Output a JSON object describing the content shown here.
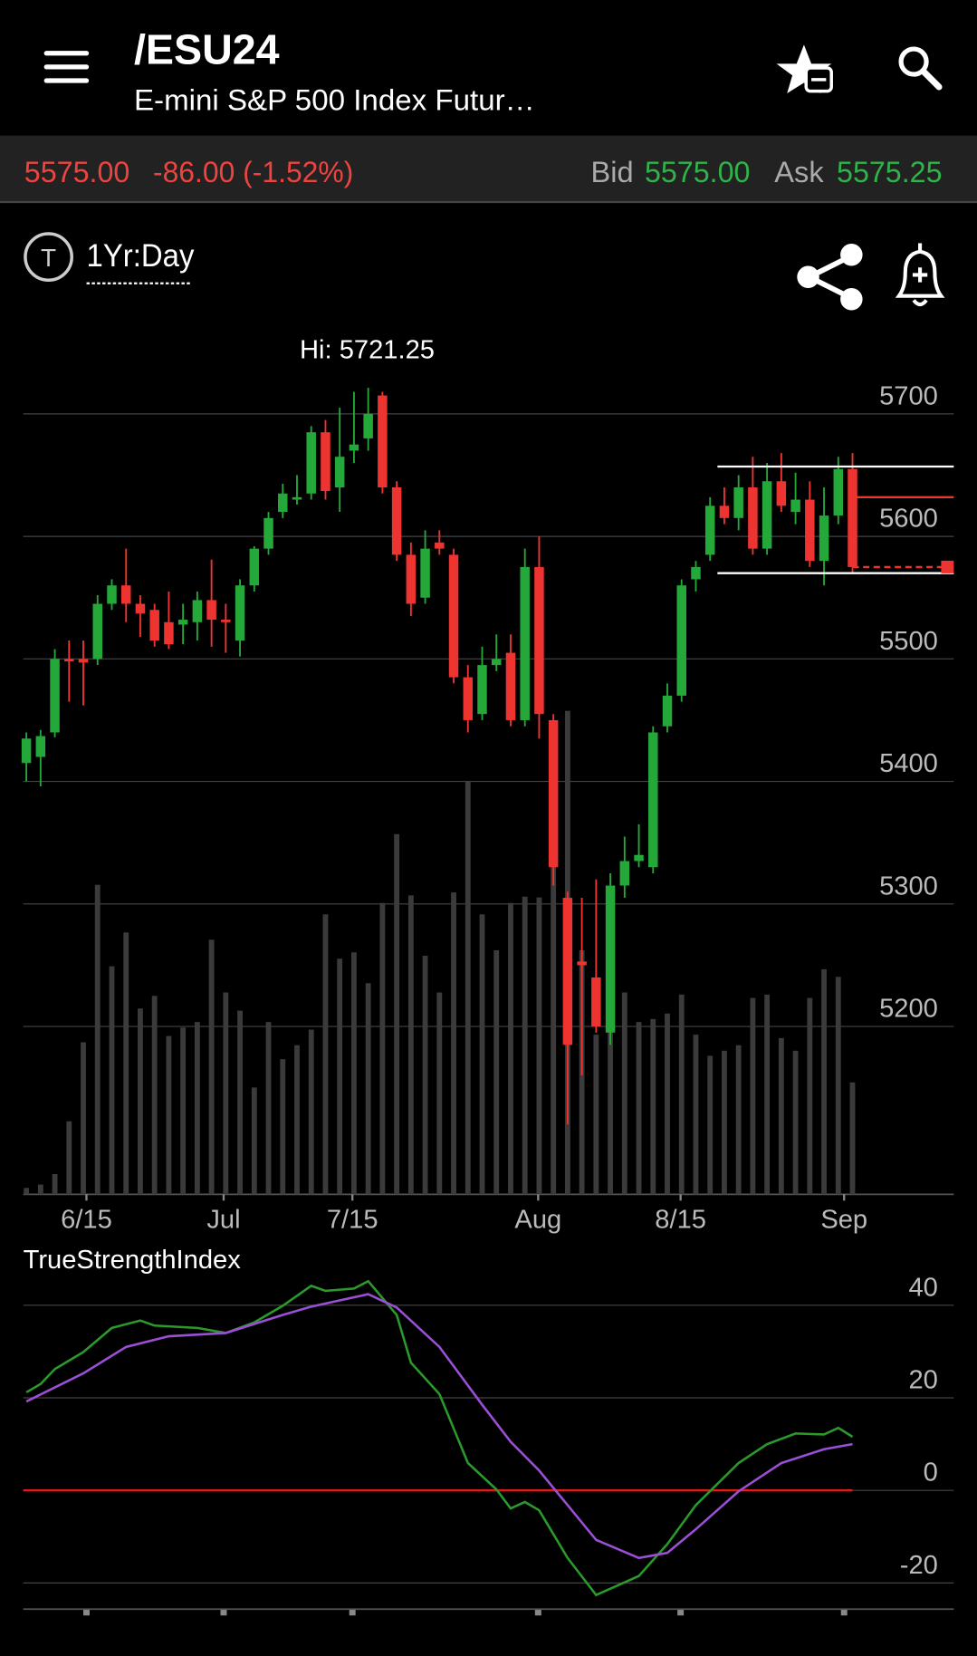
{
  "header": {
    "symbol": "/ESU24",
    "name": "E-mini S&P 500 Index Futur…"
  },
  "quote": {
    "last": "5575.00",
    "change": "-86.00 (-1.52%)",
    "bid_label": "Bid",
    "bid": "5575.00",
    "ask_label": "Ask",
    "ask": "5575.25"
  },
  "toolbar": {
    "period": "1Yr:Day"
  },
  "chart_data": [
    {
      "type": "candlestick",
      "annotation": "Hi: 5721.25",
      "open": [
        5415,
        5420,
        5440,
        5500,
        5500,
        5500,
        5545,
        5560,
        5545,
        5540,
        5530,
        5528,
        5530,
        5548,
        5532,
        5515,
        5560,
        5590,
        5620,
        5630,
        5635,
        5685,
        5640,
        5670,
        5680,
        5715,
        5640,
        5585,
        5550,
        5595,
        5585,
        5485,
        5455,
        5495,
        5505,
        5450,
        5575,
        5450,
        5305,
        5253,
        5240,
        5195,
        5315,
        5335,
        5330,
        5445,
        5470,
        5565,
        5585,
        5625,
        5615,
        5640,
        5590,
        5645,
        5620,
        5630,
        5580,
        5617,
        5655
      ],
      "high": [
        5440,
        5442,
        5508,
        5515,
        5515,
        5552,
        5565,
        5590,
        5552,
        5545,
        5555,
        5545,
        5555,
        5581,
        5545,
        5565,
        5592,
        5620,
        5643,
        5650,
        5690,
        5695,
        5705,
        5718,
        5721.25,
        5718,
        5645,
        5595,
        5605,
        5605,
        5590,
        5495,
        5510,
        5520,
        5520,
        5590,
        5600,
        5455,
        5310,
        5305,
        5320,
        5325,
        5355,
        5365,
        5445,
        5480,
        5565,
        5580,
        5632,
        5640,
        5650,
        5665,
        5660,
        5668,
        5652,
        5645,
        5640,
        5665,
        5668
      ],
      "low": [
        5400,
        5396,
        5436,
        5465,
        5462,
        5495,
        5540,
        5530,
        5518,
        5510,
        5508,
        5512,
        5515,
        5510,
        5505,
        5502,
        5555,
        5585,
        5615,
        5626,
        5630,
        5630,
        5620,
        5660,
        5670,
        5635,
        5580,
        5535,
        5545,
        5585,
        5480,
        5440,
        5450,
        5490,
        5445,
        5445,
        5435,
        5315,
        5120,
        5160,
        5195,
        5185,
        5305,
        5330,
        5325,
        5440,
        5465,
        5555,
        5580,
        5610,
        5605,
        5585,
        5585,
        5620,
        5610,
        5575,
        5560,
        5610,
        5570
      ],
      "close": [
        5435,
        5437,
        5500,
        5498,
        5497,
        5545,
        5560,
        5545,
        5537,
        5515,
        5512,
        5532,
        5548,
        5532,
        5530,
        5560,
        5590,
        5615,
        5635,
        5632,
        5685,
        5637,
        5665,
        5675,
        5700,
        5640,
        5585,
        5545,
        5590,
        5590,
        5485,
        5450,
        5495,
        5500,
        5450,
        5575,
        5455,
        5330,
        5185,
        5250,
        5200,
        5315,
        5335,
        5340,
        5440,
        5470,
        5560,
        5575,
        5625,
        5615,
        5640,
        5590,
        5645,
        5625,
        5630,
        5580,
        5617,
        5655,
        5575
      ],
      "volume": [
        1.5,
        2.3,
        4.8,
        17.3,
        36,
        73.3,
        54,
        62,
        44,
        47,
        37.5,
        39.5,
        40.8,
        60.3,
        47.8,
        43.5,
        25.3,
        40.8,
        32,
        35.3,
        39,
        66.3,
        55.8,
        57.3,
        50,
        69,
        85.3,
        70.8,
        56.5,
        47.8,
        71.5,
        97.8,
        66.3,
        57.8,
        69,
        70.5,
        70.3,
        92.8,
        114.5,
        57.8,
        37.8,
        47.8,
        47.8,
        40.8,
        41.5,
        42.8,
        47.3,
        37.8,
        32.8,
        34,
        35.3,
        46.5,
        47.3,
        37,
        34,
        46.5,
        53.3,
        51.5,
        26.5
      ],
      "volume_ylim": [
        0,
        100
      ],
      "ylim": [
        5063,
        5779
      ],
      "yticks": [
        5200,
        5300,
        5400,
        5500,
        5600,
        5700
      ],
      "xlim": [
        -0.22,
        65.11
      ],
      "xticks": [
        {
          "value": 4.22,
          "label": "6/15"
        },
        {
          "value": 13.85,
          "label": "Jul"
        },
        {
          "value": 22.89,
          "label": "7/15"
        },
        {
          "value": 35.93,
          "label": "Aug"
        },
        {
          "value": 45.93,
          "label": "8/15"
        },
        {
          "value": 57.41,
          "label": "Sep"
        }
      ],
      "grid": true,
      "up_color": "#24a83a",
      "down_color": "#ee3430",
      "volume_color": "#3b3b3b",
      "price_lines": [
        {
          "value": 5657,
          "color": "#ffffff",
          "style": "solid",
          "kind": "range"
        },
        {
          "value": 5570,
          "color": "#ffffff",
          "style": "solid",
          "kind": "range"
        },
        {
          "value": 5632,
          "color": "#ee3430",
          "style": "solid",
          "kind": "price"
        },
        {
          "value": 5575,
          "color": "#ee3430",
          "style": "dashed",
          "kind": "price"
        }
      ]
    },
    {
      "type": "line",
      "title": "TrueStrengthIndex",
      "xlim": [
        -0.22,
        65.11
      ],
      "ylim": [
        -25.2,
        47.1
      ],
      "yticks": [
        -20,
        0,
        20,
        40
      ],
      "grid": true,
      "zero_line_color": "#e01b1b",
      "series": [
        {
          "color": "#2a9a2a",
          "x": [
            0,
            1,
            2,
            4,
            6,
            8,
            9,
            12,
            14,
            16,
            18,
            20,
            21,
            23,
            24,
            26,
            27,
            29,
            31,
            33,
            34,
            35,
            36,
            38,
            40,
            43,
            45,
            47,
            50,
            52,
            54,
            56,
            57,
            58
          ],
          "values": [
            21.2,
            23,
            26.2,
            29.9,
            35.1,
            36.7,
            35.6,
            35.1,
            34,
            36.3,
            39.9,
            44.2,
            43.1,
            43.6,
            45.2,
            37.9,
            27.6,
            20.8,
            5.9,
            0.2,
            -3.9,
            -2.5,
            -4.3,
            -14.6,
            -22.6,
            -18.5,
            -11.6,
            -3.2,
            5.9,
            10,
            12.3,
            12.1,
            13.5,
            11.6
          ]
        },
        {
          "color": "#9b4fd6",
          "x": [
            0,
            4,
            7,
            10,
            14,
            18,
            20,
            24,
            26,
            29,
            32,
            34,
            36,
            38,
            40,
            43,
            45,
            47,
            50,
            53,
            56,
            58
          ],
          "values": [
            19.2,
            25.3,
            31,
            33.3,
            34,
            37.9,
            39.7,
            42.4,
            39.5,
            31,
            18.5,
            10.5,
            4.3,
            -3.2,
            -10.7,
            -14.6,
            -13.5,
            -8.4,
            -0.2,
            5.9,
            8.9,
            10
          ]
        }
      ]
    }
  ]
}
